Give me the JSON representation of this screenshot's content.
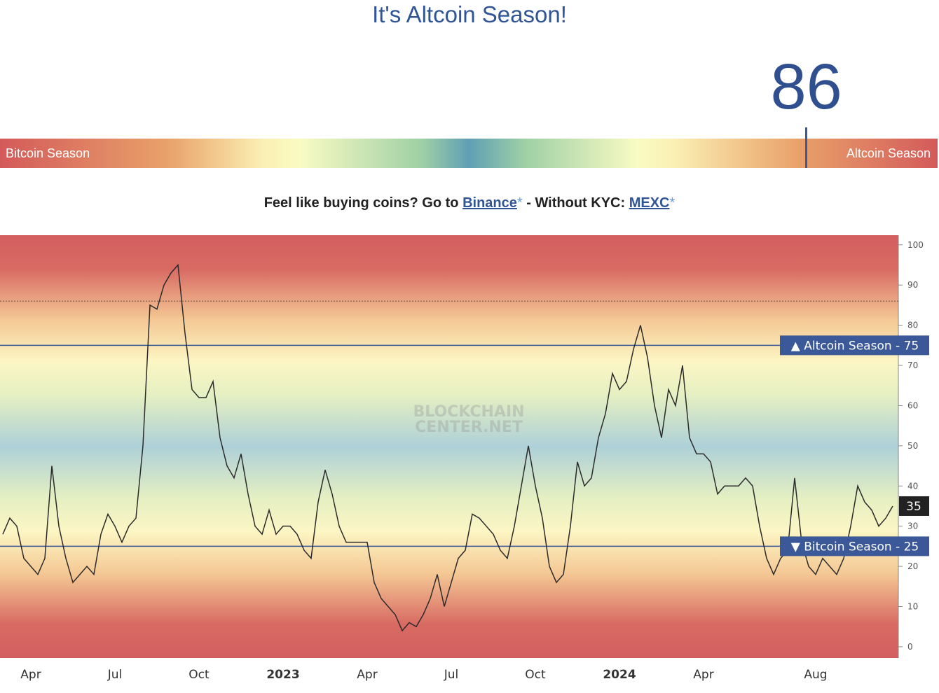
{
  "header": {
    "title": "It's Altcoin Season!",
    "index_value": 86,
    "left_label": "Bitcoin Season",
    "right_label": "Altcoin Season"
  },
  "promo": {
    "text1": "Feel like buying coins? Go to ",
    "link1": "Binance",
    "star1": "*",
    "text2": " - Without KYC: ",
    "link2": "MEXC",
    "star2": "*"
  },
  "chart_data": {
    "type": "line",
    "watermark": [
      "BLOCKCHAIN",
      "CENTER.NET"
    ],
    "color": "#2b2b2b",
    "categories": [
      null,
      null,
      null,
      null,
      "Apr",
      null,
      null,
      null,
      null,
      null,
      null,
      null,
      null,
      null,
      null,
      null,
      "Jul",
      null,
      null,
      null,
      null,
      null,
      null,
      null,
      null,
      null,
      null,
      null,
      "Oct",
      null,
      null,
      null,
      null,
      null,
      null,
      null,
      null,
      null,
      null,
      null,
      "2023",
      null,
      null,
      null,
      null,
      null,
      null,
      null,
      null,
      null,
      null,
      null,
      "Apr",
      null,
      null,
      null,
      null,
      null,
      null,
      null,
      null,
      null,
      null,
      null,
      "Jul",
      null,
      null,
      null,
      null,
      null,
      null,
      null,
      null,
      null,
      null,
      null,
      "Oct",
      null,
      null,
      null,
      null,
      null,
      null,
      null,
      null,
      null,
      null,
      null,
      "2024",
      null,
      null,
      null,
      null,
      null,
      null,
      null,
      null,
      null,
      null,
      null,
      "Apr",
      null,
      null,
      null,
      null,
      null,
      null,
      null,
      null,
      null,
      null,
      null,
      null,
      null,
      null,
      null,
      "Aug",
      null,
      null,
      null,
      null,
      null,
      null,
      null,
      null,
      null,
      null,
      null
    ],
    "values": [
      28,
      32,
      30,
      22,
      20,
      18,
      22,
      45,
      30,
      22,
      16,
      18,
      20,
      18,
      28,
      33,
      30,
      26,
      30,
      32,
      50,
      85,
      84,
      90,
      93,
      95,
      78,
      64,
      62,
      62,
      66,
      52,
      45,
      42,
      48,
      38,
      30,
      28,
      34,
      28,
      30,
      30,
      28,
      24,
      22,
      36,
      44,
      38,
      30,
      26,
      26,
      26,
      26,
      16,
      12,
      10,
      8,
      4,
      6,
      5,
      8,
      12,
      18,
      10,
      16,
      22,
      24,
      33,
      32,
      30,
      28,
      24,
      22,
      30,
      40,
      50,
      40,
      32,
      20,
      16,
      18,
      30,
      46,
      40,
      42,
      52,
      58,
      68,
      64,
      66,
      74,
      80,
      72,
      60,
      52,
      64,
      60,
      70,
      52,
      48,
      48,
      46,
      38,
      40,
      40,
      40,
      42,
      40,
      30,
      22,
      18,
      22,
      24,
      42,
      26,
      20,
      18,
      22,
      20,
      18,
      22,
      30,
      40,
      36,
      34,
      30,
      32,
      35
    ],
    "ylim": [
      -2.8,
      102.4
    ],
    "yticks": [
      0,
      10,
      20,
      30,
      40,
      50,
      60,
      70,
      80,
      90,
      100
    ],
    "reference_lines": [
      {
        "value": 75,
        "label": "▲ Altcoin Season - 75"
      },
      {
        "value": 25,
        "label": "▼ Bitcoin Season - 25"
      }
    ]
  }
}
